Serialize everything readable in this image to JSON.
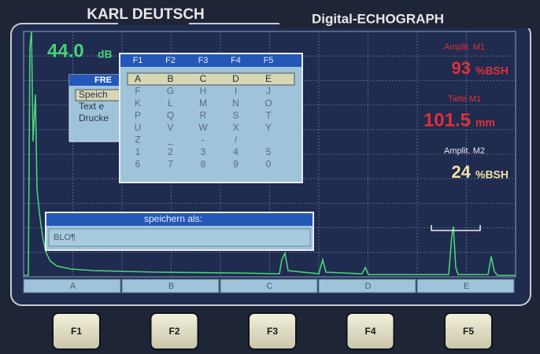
{
  "header": {
    "brand": "KARL DEUTSCH",
    "product": "Digital-ECHOGRAPH"
  },
  "screen": {
    "gain": {
      "value": "44.0",
      "unit": "dB"
    },
    "readings": [
      {
        "label": "Amplit. M1",
        "value": "93",
        "unit": "%BSH"
      },
      {
        "label": "Tiefe M1",
        "value": "101.5",
        "unit": "mm"
      },
      {
        "label": "Amplit. M2",
        "value": "24",
        "unit": "%BSH"
      }
    ],
    "menu": {
      "title": "FRE",
      "items": [
        "Speich",
        "Text e",
        "Drucke"
      ]
    },
    "charmap": {
      "header": [
        "F1",
        "F2",
        "F3",
        "F4",
        "F5"
      ],
      "rows": [
        [
          "A",
          "B",
          "C",
          "D",
          "E"
        ],
        [
          "F",
          "G",
          "H",
          "I",
          "J"
        ],
        [
          "K",
          "L",
          "M",
          "N",
          "O"
        ],
        [
          "P",
          "Q",
          "R",
          "S",
          "T"
        ],
        [
          "U",
          "V",
          "W",
          "X",
          "Y"
        ],
        [
          "Z",
          "_",
          "-",
          "/"
        ],
        [
          "1",
          "2",
          "3",
          "4",
          "5"
        ],
        [
          "6",
          "7",
          "8",
          "9",
          "0"
        ]
      ]
    },
    "dialog": {
      "title": "speichern als:",
      "input": "BLO¶"
    },
    "softkeys": [
      "A",
      "B",
      "C",
      "D",
      "E"
    ]
  },
  "buttons": [
    "F1",
    "F2",
    "F3",
    "F4",
    "F5"
  ]
}
